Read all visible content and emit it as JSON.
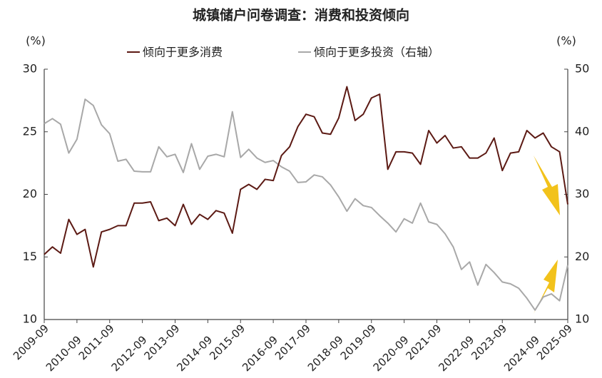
{
  "chart_data": {
    "type": "line",
    "title": "城镇储户问卷调查：消费和投资倾向",
    "y_unit": "(%)",
    "y2_unit": "(%)",
    "categories": [
      "2009-09",
      null,
      null,
      null,
      "2010-09",
      null,
      null,
      null,
      "2011-09",
      null,
      null,
      null,
      "2012-09",
      null,
      null,
      null,
      "2013-09",
      null,
      null,
      null,
      "2014-09",
      null,
      null,
      null,
      "2015-09",
      null,
      null,
      null,
      "2016-09",
      null,
      null,
      null,
      "2017-09",
      null,
      null,
      null,
      "2018-09",
      null,
      null,
      null,
      "2019-09",
      null,
      null,
      null,
      "2020-09",
      null,
      null,
      null,
      "2021-09",
      null,
      null,
      null,
      "2022-09",
      null,
      null,
      null,
      "2023-09",
      null,
      null,
      null,
      "2024-09",
      null,
      null,
      null,
      "2025-09"
    ],
    "series": [
      {
        "name": "倾向于更多消费",
        "color": "#5c1a14",
        "values": [
          15.2,
          15.8,
          15.3,
          18.0,
          16.8,
          17.2,
          14.2,
          17.0,
          17.2,
          17.5,
          17.5,
          19.3,
          19.3,
          19.4,
          17.9,
          18.1,
          17.5,
          19.2,
          17.6,
          18.4,
          18.0,
          18.7,
          18.5,
          16.9,
          20.4,
          20.8,
          20.4,
          21.2,
          21.1,
          23.1,
          23.8,
          25.4,
          26.4,
          26.2,
          24.9,
          24.8,
          26.1,
          28.6,
          25.9,
          26.4,
          27.7,
          28.0,
          22.0,
          23.4,
          23.4,
          23.3,
          22.4,
          25.1,
          24.1,
          24.7,
          23.7,
          23.8,
          22.9,
          22.9,
          23.3,
          24.5,
          21.9,
          23.3,
          23.4,
          25.1,
          24.5,
          24.9,
          23.8,
          23.4,
          19.2
        ]
      },
      {
        "name": "倾向于更多投资（右轴）",
        "color": "#a8a8a8",
        "axis": "y2",
        "values": [
          41.3,
          42.1,
          41.2,
          36.6,
          38.8,
          45.2,
          44.2,
          41.1,
          39.7,
          35.3,
          35.6,
          33.7,
          33.6,
          33.6,
          37.6,
          36.0,
          36.4,
          33.5,
          38.1,
          34.0,
          36.1,
          36.4,
          36.0,
          43.2,
          35.9,
          37.2,
          35.8,
          35.1,
          35.4,
          34.4,
          33.7,
          31.9,
          32.0,
          33.1,
          32.8,
          31.5,
          29.6,
          27.3,
          29.3,
          28.2,
          27.9,
          26.6,
          25.4,
          24.0,
          26.1,
          25.4,
          28.6,
          25.6,
          25.2,
          23.7,
          21.6,
          18.0,
          19.2,
          15.5,
          18.8,
          17.5,
          16.0,
          15.7,
          15.0,
          13.4,
          11.5,
          13.6,
          14.1,
          13.0,
          18.7
        ]
      }
    ],
    "ylim": [
      10,
      30
    ],
    "yticks": [
      10,
      15,
      20,
      25,
      30
    ],
    "y2lim": [
      10,
      50
    ],
    "y2ticks": [
      10,
      20,
      30,
      40,
      50
    ],
    "grid": false
  }
}
